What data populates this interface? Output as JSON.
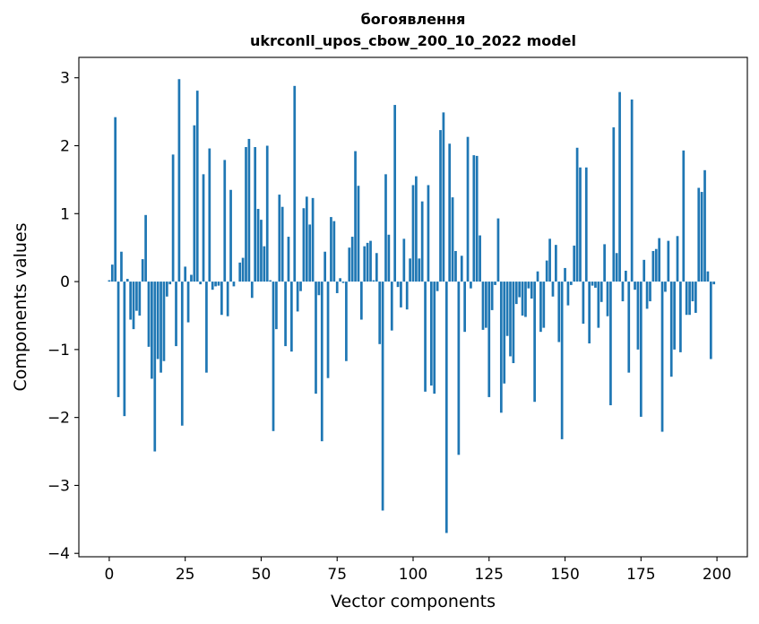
{
  "chart_data": {
    "type": "bar",
    "title": [
      "богоявлення",
      "ukrconll_upos_cbow_200_10_2022 model"
    ],
    "xlabel": "Vector components",
    "ylabel": "Components values",
    "xlim": [
      -10,
      210
    ],
    "ylim": [
      -4.05,
      3.3
    ],
    "xticks": [
      0,
      25,
      50,
      75,
      100,
      125,
      150,
      175,
      200
    ],
    "yticks": [
      -4,
      -3,
      -2,
      -1,
      0,
      1,
      2,
      3
    ],
    "ytick_labels": [
      "−4",
      "−3",
      "−2",
      "−1",
      "0",
      "1",
      "2",
      "3"
    ],
    "grid": false,
    "bar_color": "#1f77b4",
    "values": [
      0.02,
      0.25,
      2.42,
      -1.7,
      0.44,
      -1.98,
      0.04,
      -0.56,
      -0.7,
      -0.43,
      -0.5,
      0.33,
      0.98,
      -0.96,
      -1.43,
      -2.5,
      -1.14,
      -1.34,
      -1.17,
      -0.22,
      -0.04,
      1.87,
      -0.95,
      2.98,
      -2.12,
      0.22,
      -0.6,
      0.1,
      2.3,
      2.81,
      -0.04,
      1.58,
      -1.34,
      1.96,
      -0.12,
      -0.07,
      -0.06,
      -0.49,
      1.79,
      -0.51,
      1.35,
      -0.07,
      0.0,
      0.28,
      0.35,
      1.98,
      2.1,
      -0.24,
      1.98,
      1.07,
      0.91,
      0.52,
      2.0,
      0.02,
      -2.2,
      -0.7,
      1.28,
      1.1,
      -0.95,
      0.66,
      -1.03,
      2.88,
      -0.44,
      -0.14,
      1.08,
      1.25,
      0.84,
      1.23,
      -1.65,
      -0.2,
      -2.35,
      0.44,
      -1.42,
      0.95,
      0.89,
      -0.17,
      0.05,
      -0.02,
      -1.17,
      0.5,
      0.66,
      1.92,
      1.41,
      -0.56,
      0.52,
      0.57,
      0.6,
      0.02,
      0.42,
      -0.92,
      -3.37,
      1.58,
      0.69,
      -0.72,
      2.6,
      -0.08,
      -0.38,
      0.63,
      -0.41,
      0.34,
      1.42,
      1.55,
      0.34,
      1.18,
      -1.62,
      1.42,
      -1.53,
      -1.65,
      -0.14,
      2.23,
      2.49,
      -3.7,
      2.03,
      1.24,
      0.45,
      -2.55,
      0.38,
      -0.74,
      2.13,
      -0.1,
      1.86,
      1.85,
      0.68,
      -0.71,
      -0.68,
      -1.7,
      -0.42,
      -0.05,
      0.93,
      -1.93,
      -1.5,
      -0.8,
      -1.1,
      -1.2,
      -0.33,
      -0.23,
      -0.5,
      -0.52,
      -0.1,
      -0.25,
      -1.77,
      0.15,
      -0.74,
      -0.68,
      0.31,
      0.63,
      -0.22,
      0.54,
      -0.89,
      -2.32,
      0.2,
      -0.35,
      -0.05,
      0.53,
      1.97,
      1.68,
      -0.62,
      1.68,
      -0.91,
      -0.06,
      -0.09,
      -0.68,
      -0.3,
      0.55,
      -0.51,
      -1.82,
      2.27,
      0.42,
      2.79,
      -0.29,
      0.16,
      -1.34,
      2.68,
      -0.12,
      -1.0,
      -1.99,
      0.32,
      -0.4,
      -0.29,
      0.45,
      0.48,
      0.64,
      -2.21,
      -0.15,
      0.6,
      -1.4,
      -1.0,
      0.67,
      -1.04,
      1.93,
      -0.49,
      -0.49,
      -0.29,
      -0.46,
      1.38,
      1.32,
      1.64,
      0.15,
      -1.14,
      -0.04
    ]
  }
}
